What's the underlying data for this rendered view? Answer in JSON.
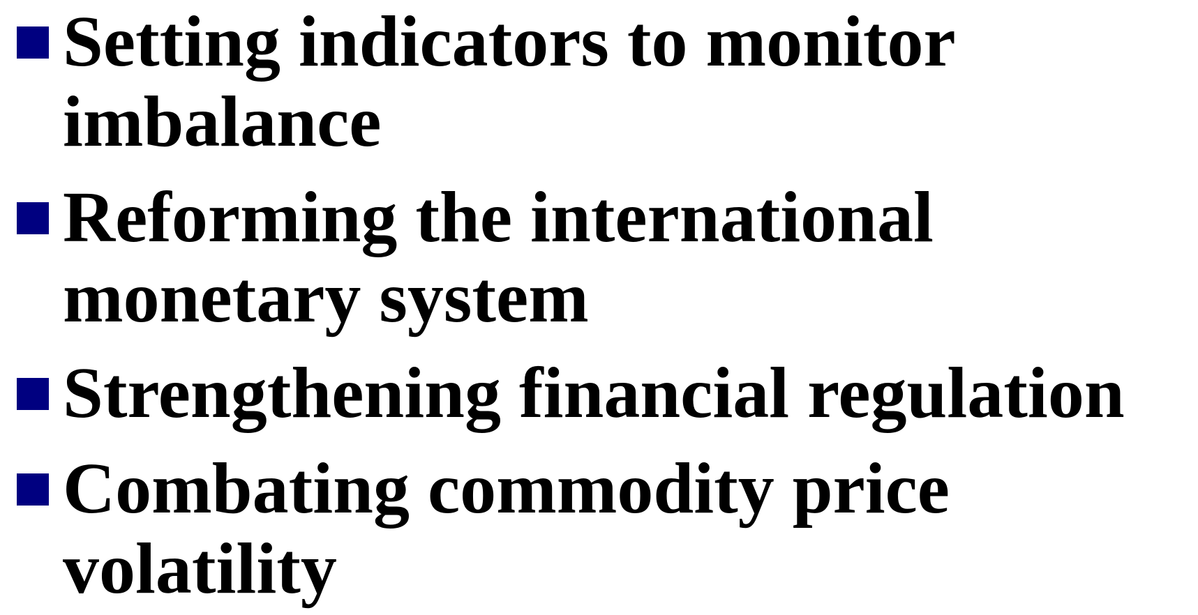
{
  "items": [
    {
      "lines": [
        "Setting indicators to monitor",
        "imbalance"
      ]
    },
    {
      "lines": [
        "Reforming the international",
        "monetary system"
      ]
    },
    {
      "lines": [
        "Strengthening financial regulation"
      ]
    },
    {
      "lines": [
        "Combating commodity price",
        "volatility"
      ]
    }
  ]
}
